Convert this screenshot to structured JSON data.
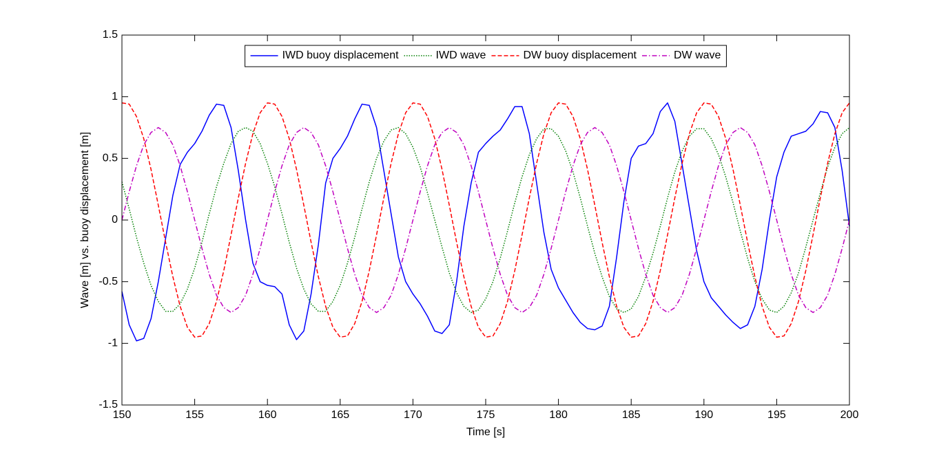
{
  "chart_data": {
    "type": "line",
    "xlabel": "Time [s]",
    "ylabel": "Wave [m] vs. buoy displacement [m]",
    "x": [
      150,
      150.5,
      151,
      151.5,
      152,
      152.5,
      153,
      153.5,
      154,
      154.5,
      155,
      155.5,
      156,
      156.5,
      157,
      157.5,
      158,
      158.5,
      159,
      159.5,
      160,
      160.5,
      161,
      161.5,
      162,
      162.5,
      163,
      163.5,
      164,
      164.5,
      165,
      165.5,
      166,
      166.5,
      167,
      167.5,
      168,
      168.5,
      169,
      169.5,
      170,
      170.5,
      171,
      171.5,
      172,
      172.5,
      173,
      173.5,
      174,
      174.5,
      175,
      175.5,
      176,
      176.5,
      177,
      177.5,
      178,
      178.5,
      179,
      179.5,
      180,
      180.5,
      181,
      181.5,
      182,
      182.5,
      183,
      183.5,
      184,
      184.5,
      185,
      185.5,
      186,
      186.5,
      187,
      187.5,
      188,
      188.5,
      189,
      189.5,
      190,
      190.5,
      191,
      191.5,
      192,
      192.5,
      193,
      193.5,
      194,
      194.5,
      195,
      195.5,
      196,
      196.5,
      197,
      197.5,
      198,
      198.5,
      199,
      199.5,
      200
    ],
    "series": [
      {
        "name": "IWD buoy displacement",
        "color": "#0000ff",
        "linestyle": "solid",
        "values": [
          -0.58,
          -0.85,
          -0.98,
          -0.96,
          -0.8,
          -0.5,
          -0.15,
          0.2,
          0.45,
          0.55,
          0.62,
          0.72,
          0.85,
          0.94,
          0.93,
          0.75,
          0.4,
          0.0,
          -0.35,
          -0.5,
          -0.53,
          -0.54,
          -0.6,
          -0.85,
          -0.97,
          -0.9,
          -0.6,
          -0.2,
          0.3,
          0.5,
          0.58,
          0.68,
          0.82,
          0.94,
          0.93,
          0.75,
          0.4,
          0.05,
          -0.3,
          -0.5,
          -0.6,
          -0.68,
          -0.78,
          -0.9,
          -0.92,
          -0.85,
          -0.5,
          -0.05,
          0.3,
          0.55,
          0.62,
          0.68,
          0.73,
          0.82,
          0.92,
          0.92,
          0.7,
          0.3,
          -0.1,
          -0.4,
          -0.55,
          -0.65,
          -0.75,
          -0.83,
          -0.88,
          -0.89,
          -0.86,
          -0.7,
          -0.3,
          0.15,
          0.5,
          0.6,
          0.62,
          0.7,
          0.88,
          0.95,
          0.8,
          0.45,
          0.1,
          -0.25,
          -0.5,
          -0.63,
          -0.7,
          -0.77,
          -0.83,
          -0.88,
          -0.85,
          -0.7,
          -0.4,
          0,
          0.35,
          0.55,
          0.68,
          0.7,
          0.72,
          0.78,
          0.88,
          0.87,
          0.75,
          0.4,
          -0.05
        ]
      },
      {
        "name": "IWD wave",
        "color": "#007f00",
        "linestyle": "dotted",
        "values": [
          0.31,
          0.09,
          -0.14,
          -0.35,
          -0.53,
          -0.66,
          -0.74,
          -0.74,
          -0.68,
          -0.56,
          -0.39,
          -0.18,
          0.05,
          0.27,
          0.46,
          0.62,
          0.72,
          0.75,
          0.72,
          0.62,
          0.46,
          0.27,
          0.05,
          -0.18,
          -0.39,
          -0.56,
          -0.68,
          -0.74,
          -0.74,
          -0.66,
          -0.53,
          -0.35,
          -0.14,
          0.09,
          0.31,
          0.5,
          0.64,
          0.73,
          0.75,
          0.7,
          0.59,
          0.43,
          0.22,
          0,
          -0.22,
          -0.43,
          -0.59,
          -0.7,
          -0.75,
          -0.73,
          -0.64,
          -0.5,
          -0.31,
          -0.09,
          0.14,
          0.35,
          0.53,
          0.66,
          0.74,
          0.74,
          0.68,
          0.56,
          0.39,
          0.18,
          -0.05,
          -0.27,
          -0.46,
          -0.62,
          -0.72,
          -0.75,
          -0.72,
          -0.62,
          -0.46,
          -0.27,
          -0.05,
          0.18,
          0.39,
          0.56,
          0.68,
          0.74,
          0.74,
          0.66,
          0.53,
          0.35,
          0.14,
          -0.09,
          -0.31,
          -0.5,
          -0.64,
          -0.73,
          -0.75,
          -0.7,
          -0.59,
          -0.43,
          -0.22,
          0,
          0.22,
          0.43,
          0.59,
          0.7,
          0.75
        ]
      },
      {
        "name": "DW buoy displacement",
        "color": "#ff0000",
        "linestyle": "dashed",
        "values": [
          0.95,
          0.94,
          0.84,
          0.66,
          0.41,
          0.12,
          -0.18,
          -0.46,
          -0.7,
          -0.87,
          -0.95,
          -0.94,
          -0.84,
          -0.66,
          -0.41,
          -0.12,
          0.18,
          0.46,
          0.7,
          0.87,
          0.95,
          0.94,
          0.84,
          0.66,
          0.41,
          0.12,
          -0.18,
          -0.46,
          -0.7,
          -0.87,
          -0.95,
          -0.94,
          -0.84,
          -0.66,
          -0.41,
          -0.12,
          0.18,
          0.46,
          0.7,
          0.87,
          0.95,
          0.94,
          0.84,
          0.66,
          0.41,
          0.12,
          -0.18,
          -0.46,
          -0.7,
          -0.87,
          -0.95,
          -0.94,
          -0.84,
          -0.66,
          -0.41,
          -0.12,
          0.18,
          0.46,
          0.7,
          0.87,
          0.95,
          0.94,
          0.84,
          0.66,
          0.41,
          0.12,
          -0.18,
          -0.46,
          -0.7,
          -0.87,
          -0.95,
          -0.94,
          -0.84,
          -0.66,
          -0.41,
          -0.12,
          0.18,
          0.46,
          0.7,
          0.87,
          0.95,
          0.94,
          0.84,
          0.66,
          0.41,
          0.12,
          -0.18,
          -0.46,
          -0.7,
          -0.87,
          -0.95,
          -0.94,
          -0.84,
          -0.66,
          -0.41,
          -0.12,
          0.18,
          0.46,
          0.7,
          0.87,
          0.95
        ]
      },
      {
        "name": "DW wave",
        "color": "#bf00bf",
        "linestyle": "dashdot",
        "values": [
          0,
          0.23,
          0.44,
          0.61,
          0.71,
          0.75,
          0.71,
          0.61,
          0.44,
          0.23,
          0,
          -0.23,
          -0.44,
          -0.61,
          -0.71,
          -0.75,
          -0.71,
          -0.61,
          -0.44,
          -0.23,
          0,
          0.23,
          0.44,
          0.61,
          0.71,
          0.75,
          0.71,
          0.61,
          0.44,
          0.23,
          0,
          -0.23,
          -0.44,
          -0.61,
          -0.71,
          -0.75,
          -0.71,
          -0.61,
          -0.44,
          -0.23,
          0,
          0.23,
          0.44,
          0.61,
          0.71,
          0.75,
          0.71,
          0.61,
          0.44,
          0.23,
          0,
          -0.23,
          -0.44,
          -0.61,
          -0.71,
          -0.75,
          -0.71,
          -0.61,
          -0.44,
          -0.23,
          0,
          0.23,
          0.44,
          0.61,
          0.71,
          0.75,
          0.71,
          0.61,
          0.44,
          0.23,
          0,
          -0.23,
          -0.44,
          -0.61,
          -0.71,
          -0.75,
          -0.71,
          -0.61,
          -0.44,
          -0.23,
          0,
          0.23,
          0.44,
          0.61,
          0.71,
          0.75,
          0.71,
          0.61,
          0.44,
          0.23,
          0,
          -0.23,
          -0.44,
          -0.61,
          -0.71,
          -0.75,
          -0.71,
          -0.61,
          -0.44,
          -0.23,
          0
        ]
      }
    ],
    "xlim": [
      150,
      200
    ],
    "xticks": [
      150,
      155,
      160,
      165,
      170,
      175,
      180,
      185,
      190,
      195,
      200
    ],
    "ylim": [
      -1.5,
      1.5
    ],
    "yticks": [
      -1.5,
      -1,
      -0.5,
      0,
      0.5,
      1,
      1.5
    ],
    "grid": false,
    "legend": "top"
  }
}
